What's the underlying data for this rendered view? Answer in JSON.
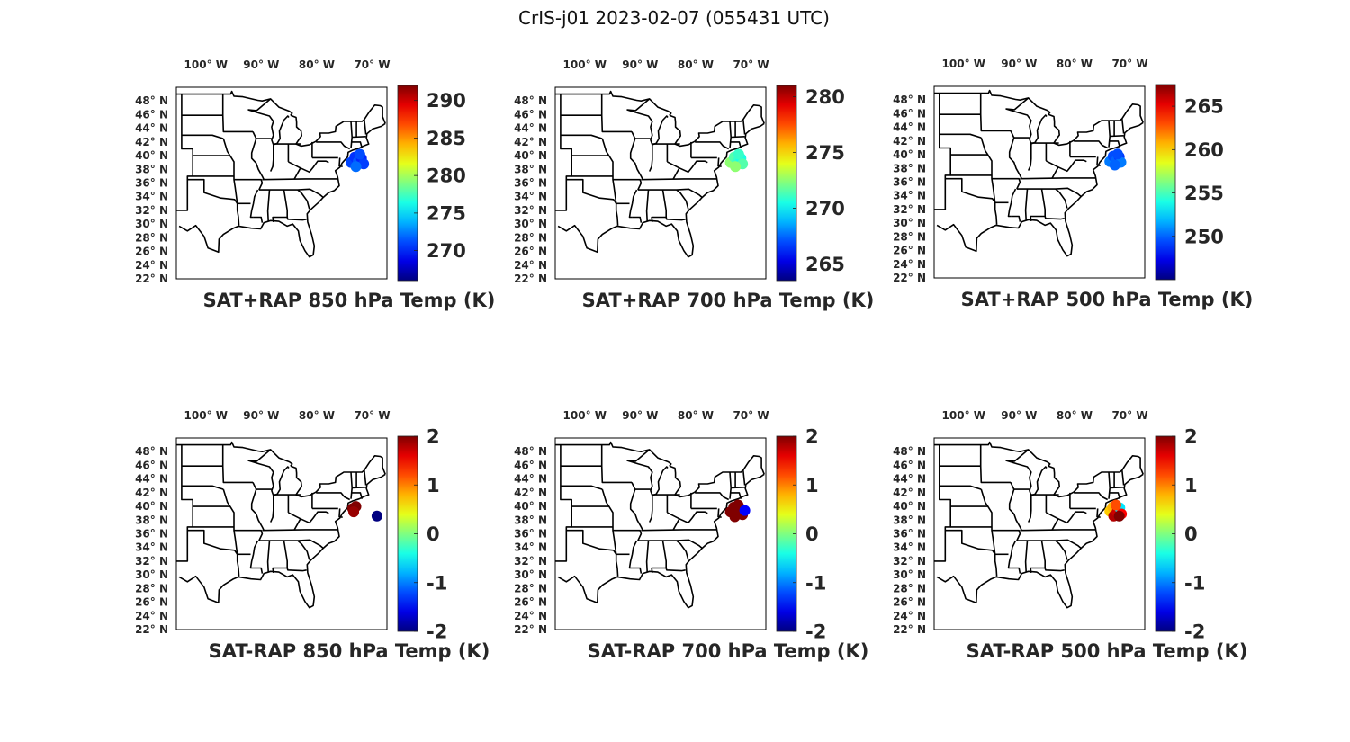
{
  "figure": {
    "title": "CrIS-j01 2023-02-07 (055431 UTC)"
  },
  "lon_ticks": [
    {
      "value": -100,
      "label": "100° W"
    },
    {
      "value": -90,
      "label": "90° W"
    },
    {
      "value": -80,
      "label": "80° W"
    },
    {
      "value": -70,
      "label": "70° W"
    }
  ],
  "lat_ticks": [
    {
      "value": 48,
      "label": "48° N"
    },
    {
      "value": 46,
      "label": "46° N"
    },
    {
      "value": 44,
      "label": "44° N"
    },
    {
      "value": 42,
      "label": "42° N"
    },
    {
      "value": 40,
      "label": "40° N"
    },
    {
      "value": 38,
      "label": "38° N"
    },
    {
      "value": 36,
      "label": "36° N"
    },
    {
      "value": 34,
      "label": "34° N"
    },
    {
      "value": 32,
      "label": "32° N"
    },
    {
      "value": 30,
      "label": "30° N"
    },
    {
      "value": 28,
      "label": "28° N"
    },
    {
      "value": 26,
      "label": "26° N"
    },
    {
      "value": 24,
      "label": "24° N"
    },
    {
      "value": 22,
      "label": "22° N"
    }
  ],
  "map_extent": {
    "lon_range": [
      -105,
      -67
    ],
    "lat_range": [
      22,
      50
    ]
  },
  "colormap": "jet",
  "panels": [
    {
      "id": "sat-plus-rap-850",
      "title": "SAT+RAP 850 hPa Temp (K)",
      "colorbar": {
        "range": [
          266,
          292
        ],
        "ticks": [
          270,
          275,
          280,
          285,
          290
        ]
      },
      "points": [
        {
          "lon": -73.5,
          "lat": 39.0,
          "value": 271.0
        },
        {
          "lon": -72.8,
          "lat": 39.8,
          "value": 270.5
        },
        {
          "lon": -72.2,
          "lat": 39.1,
          "value": 271.5
        },
        {
          "lon": -71.6,
          "lat": 39.6,
          "value": 270.2
        },
        {
          "lon": -71.2,
          "lat": 38.8,
          "value": 270.8
        },
        {
          "lon": -72.6,
          "lat": 38.4,
          "value": 272.0
        },
        {
          "lon": -71.9,
          "lat": 40.2,
          "value": 271.2
        }
      ]
    },
    {
      "id": "sat-plus-rap-700",
      "title": "SAT+RAP 700 hPa Temp (K)",
      "colorbar": {
        "range": [
          263.5,
          281
        ],
        "ticks": [
          265,
          270,
          275,
          280
        ]
      },
      "points": [
        {
          "lon": -73.4,
          "lat": 39.0,
          "value": 272.5
        },
        {
          "lon": -72.7,
          "lat": 39.8,
          "value": 271.5
        },
        {
          "lon": -72.1,
          "lat": 39.1,
          "value": 271.0
        },
        {
          "lon": -71.5,
          "lat": 39.6,
          "value": 270.5
        },
        {
          "lon": -71.2,
          "lat": 38.8,
          "value": 271.5
        },
        {
          "lon": -72.5,
          "lat": 38.4,
          "value": 272.5
        },
        {
          "lon": -71.9,
          "lat": 40.2,
          "value": 271.0
        }
      ]
    },
    {
      "id": "sat-plus-rap-500",
      "title": "SAT+RAP 500 hPa Temp (K)",
      "colorbar": {
        "range": [
          245,
          267.5
        ],
        "ticks": [
          250,
          255,
          260,
          265
        ]
      },
      "points": [
        {
          "lon": -73.3,
          "lat": 39.0,
          "value": 250.5
        },
        {
          "lon": -72.7,
          "lat": 39.8,
          "value": 249.5
        },
        {
          "lon": -72.1,
          "lat": 39.2,
          "value": 250.0
        },
        {
          "lon": -71.6,
          "lat": 39.7,
          "value": 249.0
        },
        {
          "lon": -71.3,
          "lat": 38.9,
          "value": 250.5
        },
        {
          "lon": -72.4,
          "lat": 38.5,
          "value": 250.0
        },
        {
          "lon": -71.9,
          "lat": 40.1,
          "value": 249.5
        }
      ]
    },
    {
      "id": "sat-minus-rap-850",
      "title": "SAT-RAP 850 hPa Temp (K)",
      "colorbar": {
        "range": [
          -2,
          2
        ],
        "ticks": [
          2,
          1,
          0,
          -1,
          -2
        ]
      },
      "points": [
        {
          "lon": -73.2,
          "lat": 39.7,
          "value": 2.0
        },
        {
          "lon": -72.6,
          "lat": 40.0,
          "value": 2.0
        },
        {
          "lon": -73.0,
          "lat": 39.2,
          "value": 1.9
        },
        {
          "lon": -68.8,
          "lat": 38.6,
          "value": -2.0
        }
      ]
    },
    {
      "id": "sat-minus-rap-700",
      "title": "SAT-RAP 700 hPa Temp (K)",
      "colorbar": {
        "range": [
          -2,
          2
        ],
        "ticks": [
          2,
          1,
          0,
          -1,
          -2
        ]
      },
      "points": [
        {
          "lon": -73.4,
          "lat": 39.2,
          "value": 2.0
        },
        {
          "lon": -72.8,
          "lat": 39.9,
          "value": 2.0
        },
        {
          "lon": -72.2,
          "lat": 39.2,
          "value": 2.0
        },
        {
          "lon": -71.6,
          "lat": 39.7,
          "value": 2.0
        },
        {
          "lon": -71.2,
          "lat": 38.8,
          "value": 2.0
        },
        {
          "lon": -72.6,
          "lat": 38.5,
          "value": 2.0
        },
        {
          "lon": -72.0,
          "lat": 40.2,
          "value": 2.0
        },
        {
          "lon": -70.8,
          "lat": 39.4,
          "value": -1.5
        }
      ]
    },
    {
      "id": "sat-minus-rap-500",
      "title": "SAT-RAP 500 hPa Temp (K)",
      "colorbar": {
        "range": [
          -2,
          2
        ],
        "ticks": [
          2,
          1,
          0,
          -1,
          -2
        ]
      },
      "points": [
        {
          "lon": -73.3,
          "lat": 39.3,
          "value": 0.7
        },
        {
          "lon": -72.8,
          "lat": 39.9,
          "value": 0.8
        },
        {
          "lon": -72.6,
          "lat": 38.6,
          "value": 1.8
        },
        {
          "lon": -72.0,
          "lat": 39.2,
          "value": 1.7
        },
        {
          "lon": -71.5,
          "lat": 39.8,
          "value": -0.6
        },
        {
          "lon": -71.2,
          "lat": 38.9,
          "value": 1.5
        },
        {
          "lon": -72.2,
          "lat": 40.2,
          "value": 1.2
        },
        {
          "lon": -71.6,
          "lat": 38.6,
          "value": 2.0
        }
      ]
    }
  ]
}
